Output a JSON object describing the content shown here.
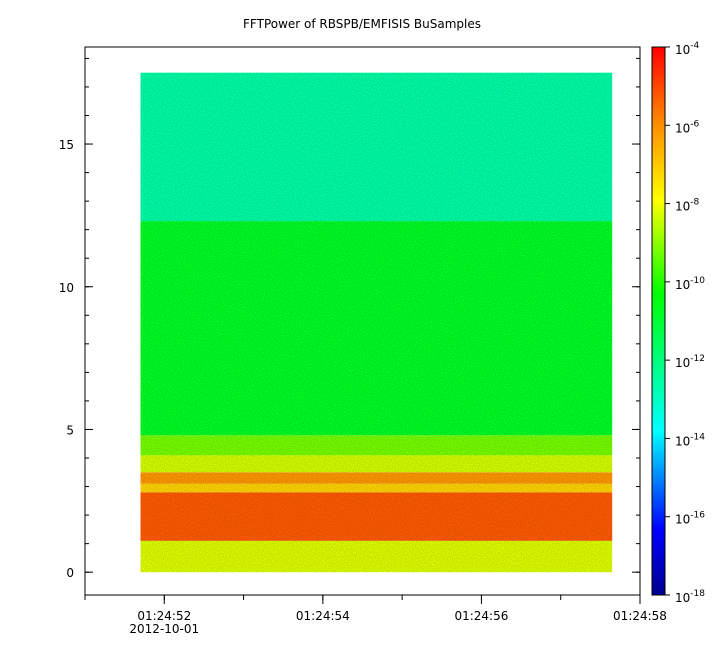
{
  "chart_data": {
    "type": "heatmap",
    "title": "FFTPower of RBSPB/EMFISIS  BuSamples",
    "xlabel": "",
    "ylabel": "",
    "x_range": [
      "01:24:51",
      "01:24:58"
    ],
    "x_ticks": [
      "01:24:52",
      "01:24:54",
      "01:24:56",
      "01:24:58"
    ],
    "x_date_label": "2012-10-01",
    "y_range": [
      -0.8,
      18.4
    ],
    "y_ticks": [
      0,
      5,
      10,
      15
    ],
    "data_extent": {
      "x": [
        "01:24:51.7",
        "01:24:57.65"
      ],
      "y": [
        0,
        17.5
      ]
    },
    "bands": [
      {
        "y": [
          0,
          1.1
        ],
        "log10_power": -8.2
      },
      {
        "y": [
          1.1,
          2.8
        ],
        "log10_power": -5.3
      },
      {
        "y": [
          2.8,
          3.1
        ],
        "log10_power": -7.2
      },
      {
        "y": [
          3.1,
          3.5
        ],
        "log10_power": -6.2
      },
      {
        "y": [
          3.5,
          4.1
        ],
        "log10_power": -8.3
      },
      {
        "y": [
          4.1,
          4.8
        ],
        "log10_power": -9.2
      },
      {
        "y": [
          4.8,
          12.3
        ],
        "log10_power": -10.8
      },
      {
        "y": [
          12.3,
          17.5
        ],
        "log10_power": -12.6
      }
    ],
    "colorbar": {
      "scale": "log",
      "range_exponents": [
        -18,
        -4
      ],
      "tick_exponents": [
        -4,
        -6,
        -8,
        -10,
        -12,
        -14,
        -16,
        -18
      ],
      "tick_base": "10",
      "colors": [
        "#00008f",
        "#0000ff",
        "#00ffff",
        "#00ff00",
        "#ffff00",
        "#ff8c00",
        "#ff0000"
      ]
    },
    "grid": false
  }
}
